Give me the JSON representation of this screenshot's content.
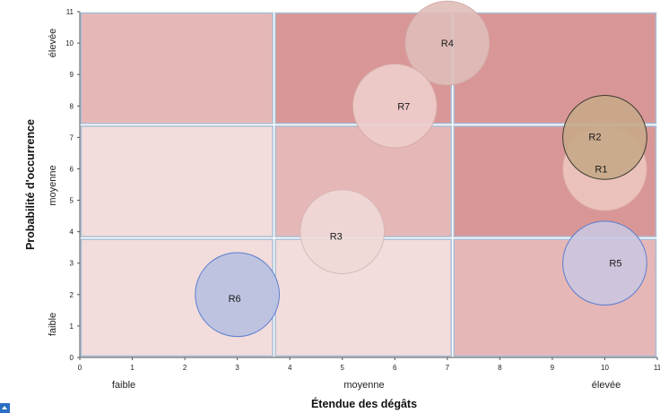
{
  "chart_data": {
    "type": "bubble",
    "xlabel": "Étendue des dégâts",
    "ylabel": "Probabilité d'occurrence",
    "xlim": [
      0,
      11
    ],
    "ylim": [
      0,
      11
    ],
    "xticks": [
      0,
      1,
      2,
      3,
      4,
      5,
      6,
      7,
      8,
      9,
      10,
      11
    ],
    "yticks": [
      0,
      1,
      2,
      3,
      4,
      5,
      6,
      7,
      8,
      9,
      10,
      11
    ],
    "x_categories": [
      "faible",
      "moyenne",
      "élevée"
    ],
    "y_categories": [
      "faible",
      "moyenne",
      "élevée"
    ],
    "zones": [
      {
        "x": [
          0,
          3.7
        ],
        "y": [
          7.4,
          11
        ],
        "color": "#e6b7b7"
      },
      {
        "x": [
          3.7,
          7.1
        ],
        "y": [
          7.4,
          11
        ],
        "color": "#d99696"
      },
      {
        "x": [
          7.1,
          11
        ],
        "y": [
          7.4,
          11
        ],
        "color": "#d99696"
      },
      {
        "x": [
          0,
          3.7
        ],
        "y": [
          3.8,
          7.4
        ],
        "color": "#f2dcdc"
      },
      {
        "x": [
          3.7,
          7.1
        ],
        "y": [
          3.8,
          7.4
        ],
        "color": "#e6b7b7"
      },
      {
        "x": [
          7.1,
          11
        ],
        "y": [
          3.8,
          7.4
        ],
        "color": "#d99696"
      },
      {
        "x": [
          0,
          3.7
        ],
        "y": [
          0,
          3.8
        ],
        "color": "#f2dcdc"
      },
      {
        "x": [
          3.7,
          7.1
        ],
        "y": [
          0,
          3.8
        ],
        "color": "#f2dcdc"
      },
      {
        "x": [
          7.1,
          11
        ],
        "y": [
          0,
          3.8
        ],
        "color": "#e6b7b7"
      }
    ],
    "bubbles": [
      {
        "label": "R1",
        "x": 10,
        "y": 6,
        "r": 1.6,
        "fill": "#ecc7bf",
        "stroke": "#d9a89e"
      },
      {
        "label": "R2",
        "x": 10,
        "y": 7,
        "r": 1.6,
        "fill": "#c8a888",
        "stroke": "#3a3a30"
      },
      {
        "label": "R3",
        "x": 5,
        "y": 4,
        "r": 1.6,
        "fill": "#efd9d7",
        "stroke": "#d6b9b6"
      },
      {
        "label": "R4",
        "x": 7,
        "y": 10,
        "r": 1.6,
        "fill": "#dfbcb8",
        "stroke": "#d2aca8"
      },
      {
        "label": "R5",
        "x": 10,
        "y": 3,
        "r": 1.6,
        "fill": "#cbc5df",
        "stroke": "#5b7ecf"
      },
      {
        "label": "R6",
        "x": 3,
        "y": 2,
        "r": 1.6,
        "fill": "#b8c0e0",
        "stroke": "#5b7ecf"
      },
      {
        "label": "R7",
        "x": 6,
        "y": 8,
        "r": 1.6,
        "fill": "#edcdcb",
        "stroke": "#d6aaa6"
      }
    ]
  }
}
